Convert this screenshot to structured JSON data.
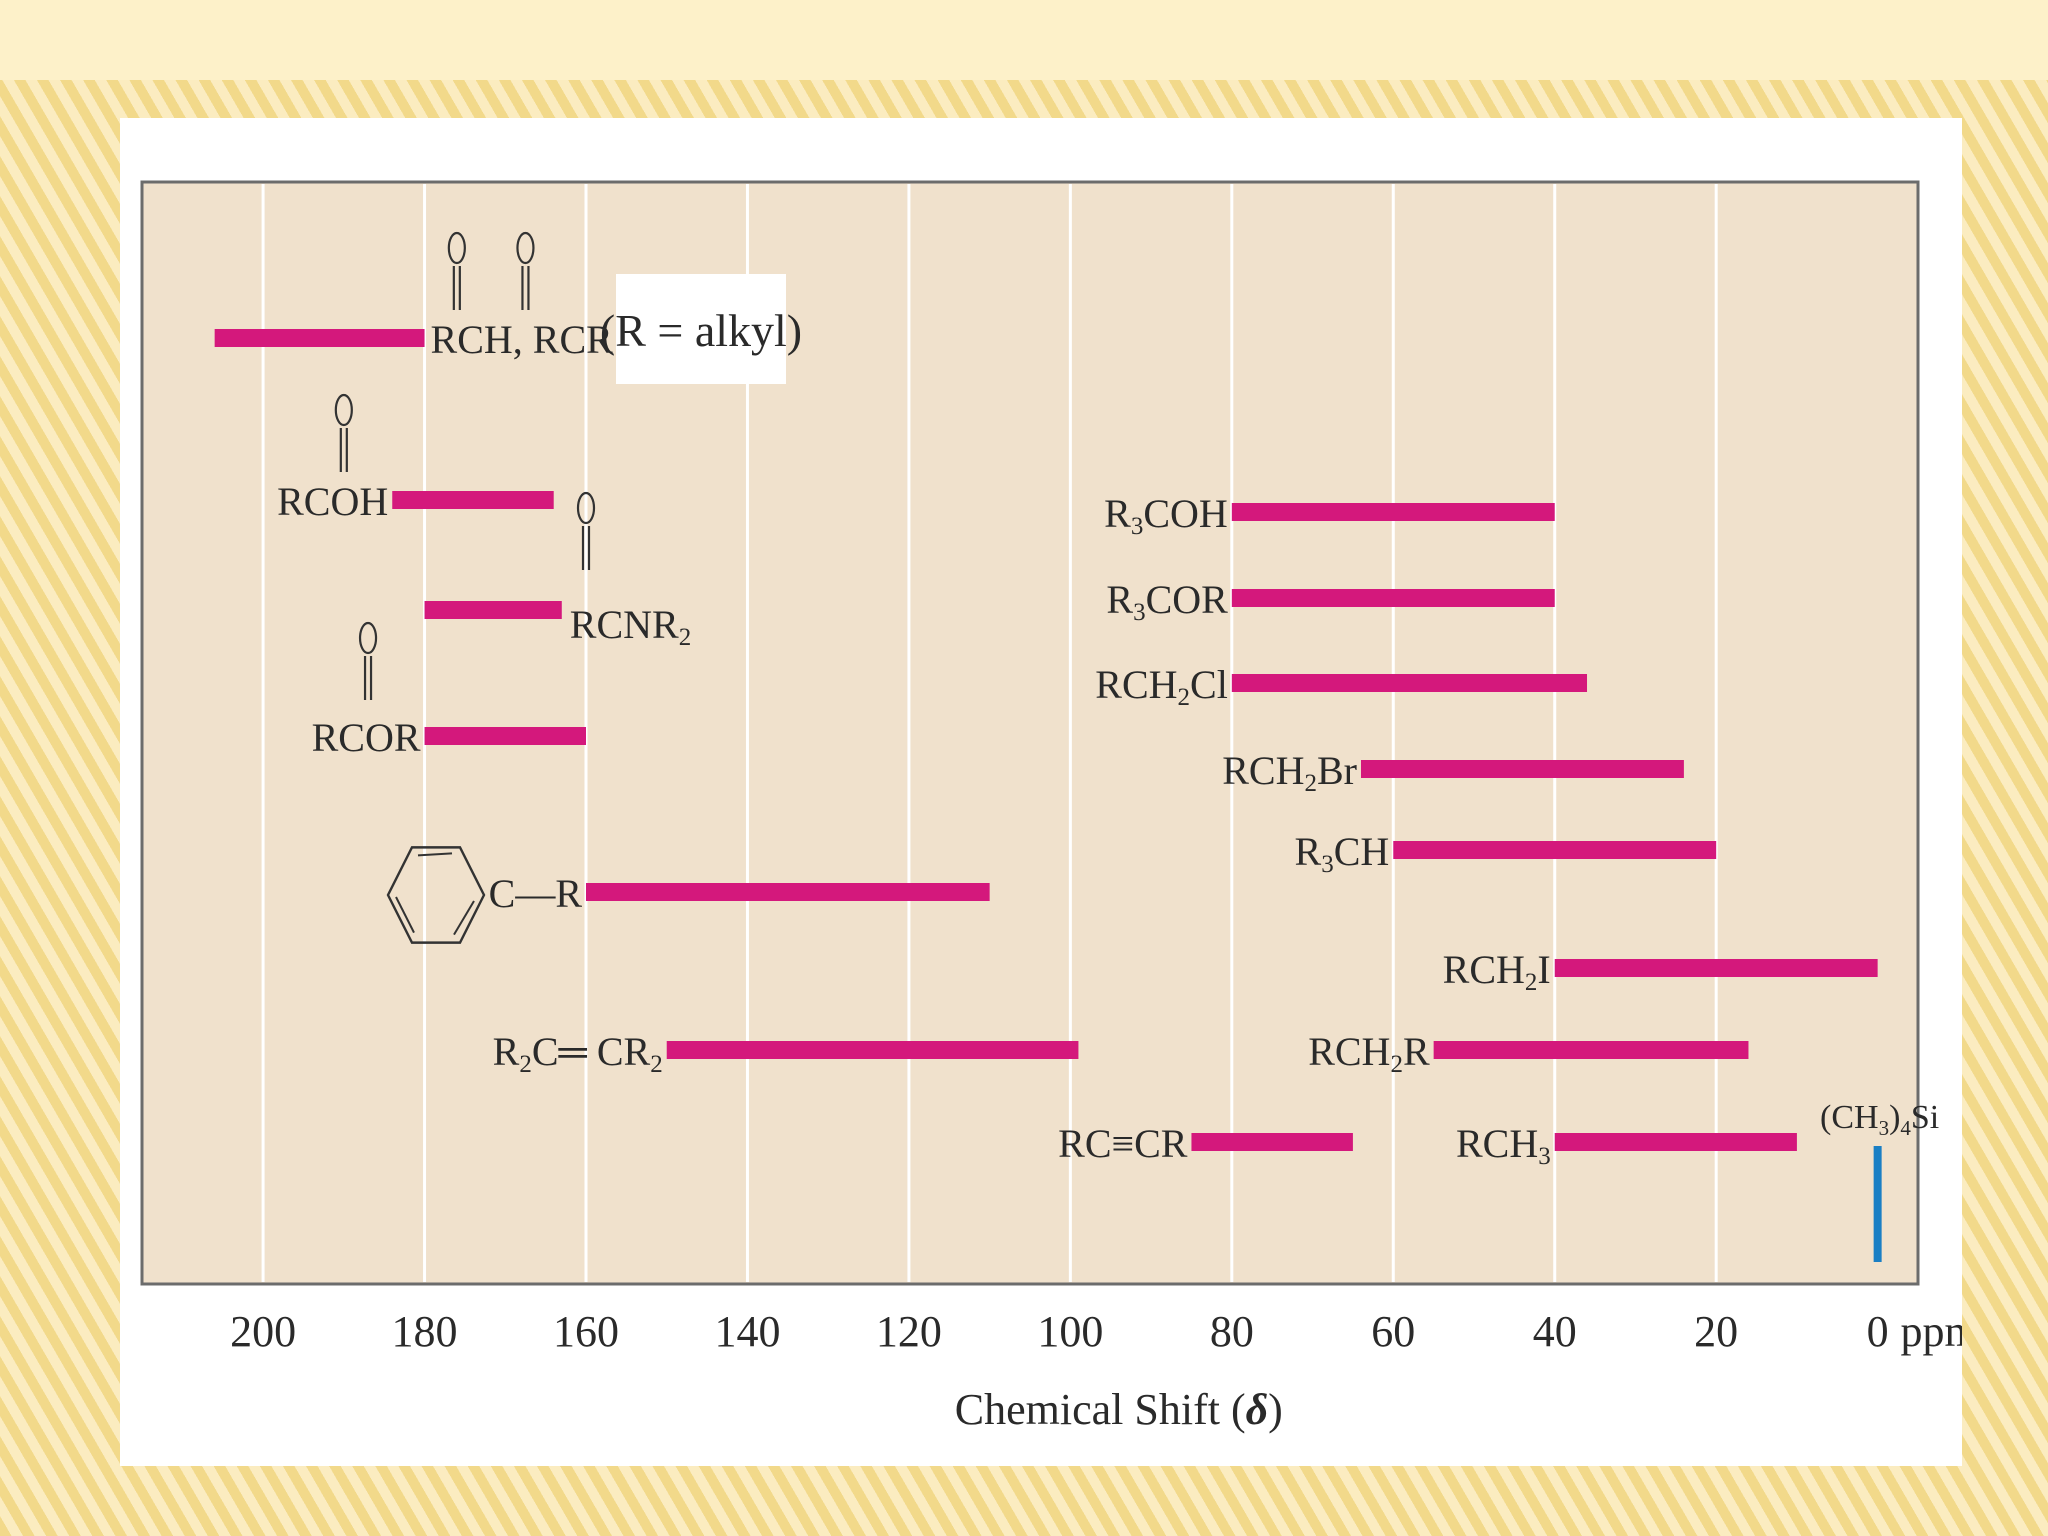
{
  "chart_data": {
    "type": "range-bar",
    "title": "",
    "xlabel_prefix": "Chemical Shift (",
    "xlabel_symbol": "δ",
    "xlabel_suffix": ")",
    "unit_label": "ppm",
    "xlim": [
      215,
      -5
    ],
    "x_reversed": true,
    "ticks": [
      "200",
      "180",
      "160",
      "140",
      "120",
      "100",
      "80",
      "60",
      "40",
      "20",
      "0"
    ],
    "grid": "vertical",
    "note": "(R = alkyl)",
    "bar_color": "#d4187c",
    "reference_color": "#1a7fc4",
    "plot_bg": "#f0e1cc",
    "ranges": [
      {
        "name": "RCH, RCR",
        "label": "RCH, RCR",
        "from": 180,
        "to": 206,
        "carbonyl": [
          true,
          true
        ]
      },
      {
        "name": "RCOH",
        "label": "RCOH",
        "from": 164,
        "to": 184,
        "carbonyl": [
          true
        ]
      },
      {
        "name": "RCNR2",
        "label": "RCNR",
        "label_sub": "2",
        "from": 163,
        "to": 180,
        "carbonyl": [
          true
        ]
      },
      {
        "name": "RCOR",
        "label": "RCOR",
        "from": 160,
        "to": 180,
        "carbonyl": [
          true
        ]
      },
      {
        "name": "C-R aromatic",
        "label": "C—R",
        "from": 110,
        "to": 160
      },
      {
        "name": "R2C=CR2",
        "label": "R",
        "label_sub": "2",
        "label_rest": "C═ CR",
        "label_sub2": "2",
        "from": 99,
        "to": 150
      },
      {
        "name": "RC≡CR",
        "label": "RC≡CR",
        "from": 65,
        "to": 85
      },
      {
        "name": "R3COH",
        "label": "R",
        "label_sub": "3",
        "label_rest": "COH",
        "from": 40,
        "to": 80
      },
      {
        "name": "R3COR",
        "label": "R",
        "label_sub": "3",
        "label_rest": "COR",
        "from": 40,
        "to": 80
      },
      {
        "name": "RCH2Cl",
        "label": "RCH",
        "label_sub": "2",
        "label_rest": "Cl",
        "from": 36,
        "to": 80
      },
      {
        "name": "RCH2Br",
        "label": "RCH",
        "label_sub": "2",
        "label_rest": "Br",
        "from": 24,
        "to": 64
      },
      {
        "name": "R3CH",
        "label": "R",
        "label_sub": "3",
        "label_rest": "CH",
        "from": 20,
        "to": 60
      },
      {
        "name": "RCH2I",
        "label": "RCH",
        "label_sub": "2",
        "label_rest": "I",
        "from": 0,
        "to": 40
      },
      {
        "name": "RCH2R",
        "label": "RCH",
        "label_sub": "2",
        "label_rest": "R",
        "from": 16,
        "to": 55
      },
      {
        "name": "RCH3",
        "label": "RCH",
        "label_sub": "3",
        "from": 10,
        "to": 40
      }
    ],
    "reference": {
      "name": "(CH3)4Si",
      "label_open": "(CH",
      "label_sub1": "3",
      "label_mid": ")",
      "label_sub2": "4",
      "label_rest": "Si",
      "value": 0
    }
  }
}
